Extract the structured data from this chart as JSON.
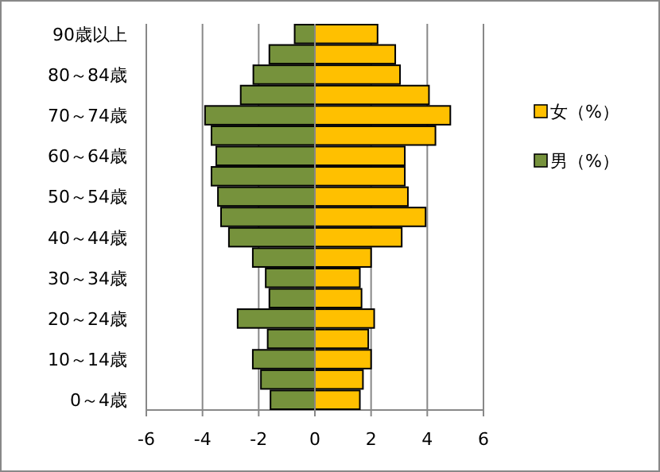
{
  "chart_data": {
    "type": "bar",
    "orientation": "horizontal",
    "stacked": true,
    "categories": [
      "90歳以上",
      null,
      "80～84歳",
      null,
      "70～74歳",
      null,
      "60～64歳",
      null,
      "50～54歳",
      null,
      "40～44歳",
      null,
      "30～34歳",
      null,
      "20～24歳",
      null,
      "10～14歳",
      null,
      "0～4歳"
    ],
    "series": [
      {
        "name": "女（%）",
        "color": "#ffc000",
        "values": [
          2.23,
          2.86,
          3.03,
          4.06,
          4.82,
          4.29,
          3.2,
          3.2,
          3.31,
          3.94,
          3.09,
          2.0,
          1.6,
          1.66,
          2.11,
          1.9,
          2.0,
          1.71,
          1.6
        ]
      },
      {
        "name": "男（%）",
        "color": "#76923c",
        "values": [
          -0.72,
          -1.62,
          -2.19,
          -2.64,
          -3.91,
          -3.68,
          -3.51,
          -3.68,
          -3.45,
          -3.34,
          -3.06,
          -2.21,
          -1.75,
          -1.62,
          -2.75,
          -1.68,
          -2.21,
          -1.92,
          -1.58
        ]
      }
    ],
    "xlim": [
      -6,
      6
    ],
    "xticks": [
      -6,
      -4,
      -2,
      0,
      2,
      4,
      6
    ],
    "grid": "x",
    "legend": "right"
  }
}
